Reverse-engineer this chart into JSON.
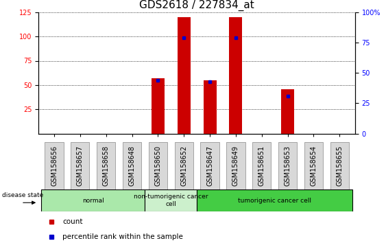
{
  "title": "GDS2618 / 227834_at",
  "samples": [
    "GSM158656",
    "GSM158657",
    "GSM158658",
    "GSM158648",
    "GSM158650",
    "GSM158652",
    "GSM158647",
    "GSM158649",
    "GSM158651",
    "GSM158653",
    "GSM158654",
    "GSM158655"
  ],
  "counts": [
    0,
    0,
    0,
    0,
    57,
    120,
    55,
    120,
    0,
    46,
    0,
    0
  ],
  "percentile_ranks": [
    0,
    0,
    0,
    0,
    44,
    79,
    43,
    79,
    0,
    31,
    0,
    0
  ],
  "disease_groups": [
    {
      "label": "normal",
      "indices": [
        0,
        1,
        2,
        3
      ],
      "color": "#aae8aa"
    },
    {
      "label": "non-tumorigenic cancer\ncell",
      "indices": [
        4,
        5
      ],
      "color": "#ccf0cc"
    },
    {
      "label": "tumorigenic cancer cell",
      "indices": [
        6,
        7,
        8,
        9,
        10,
        11
      ],
      "color": "#44cc44"
    }
  ],
  "ylim_left": [
    0,
    125
  ],
  "ylim_right": [
    0,
    100
  ],
  "yticks_left": [
    25,
    50,
    75,
    100,
    125
  ],
  "yticks_right": [
    0,
    25,
    50,
    75,
    100
  ],
  "bar_color": "#CC0000",
  "marker_color": "#0000CC",
  "bg_color": "#ffffff",
  "grid_color": "#000000",
  "bar_width": 0.5,
  "title_fontsize": 11,
  "tick_fontsize": 7,
  "label_fontsize": 7
}
